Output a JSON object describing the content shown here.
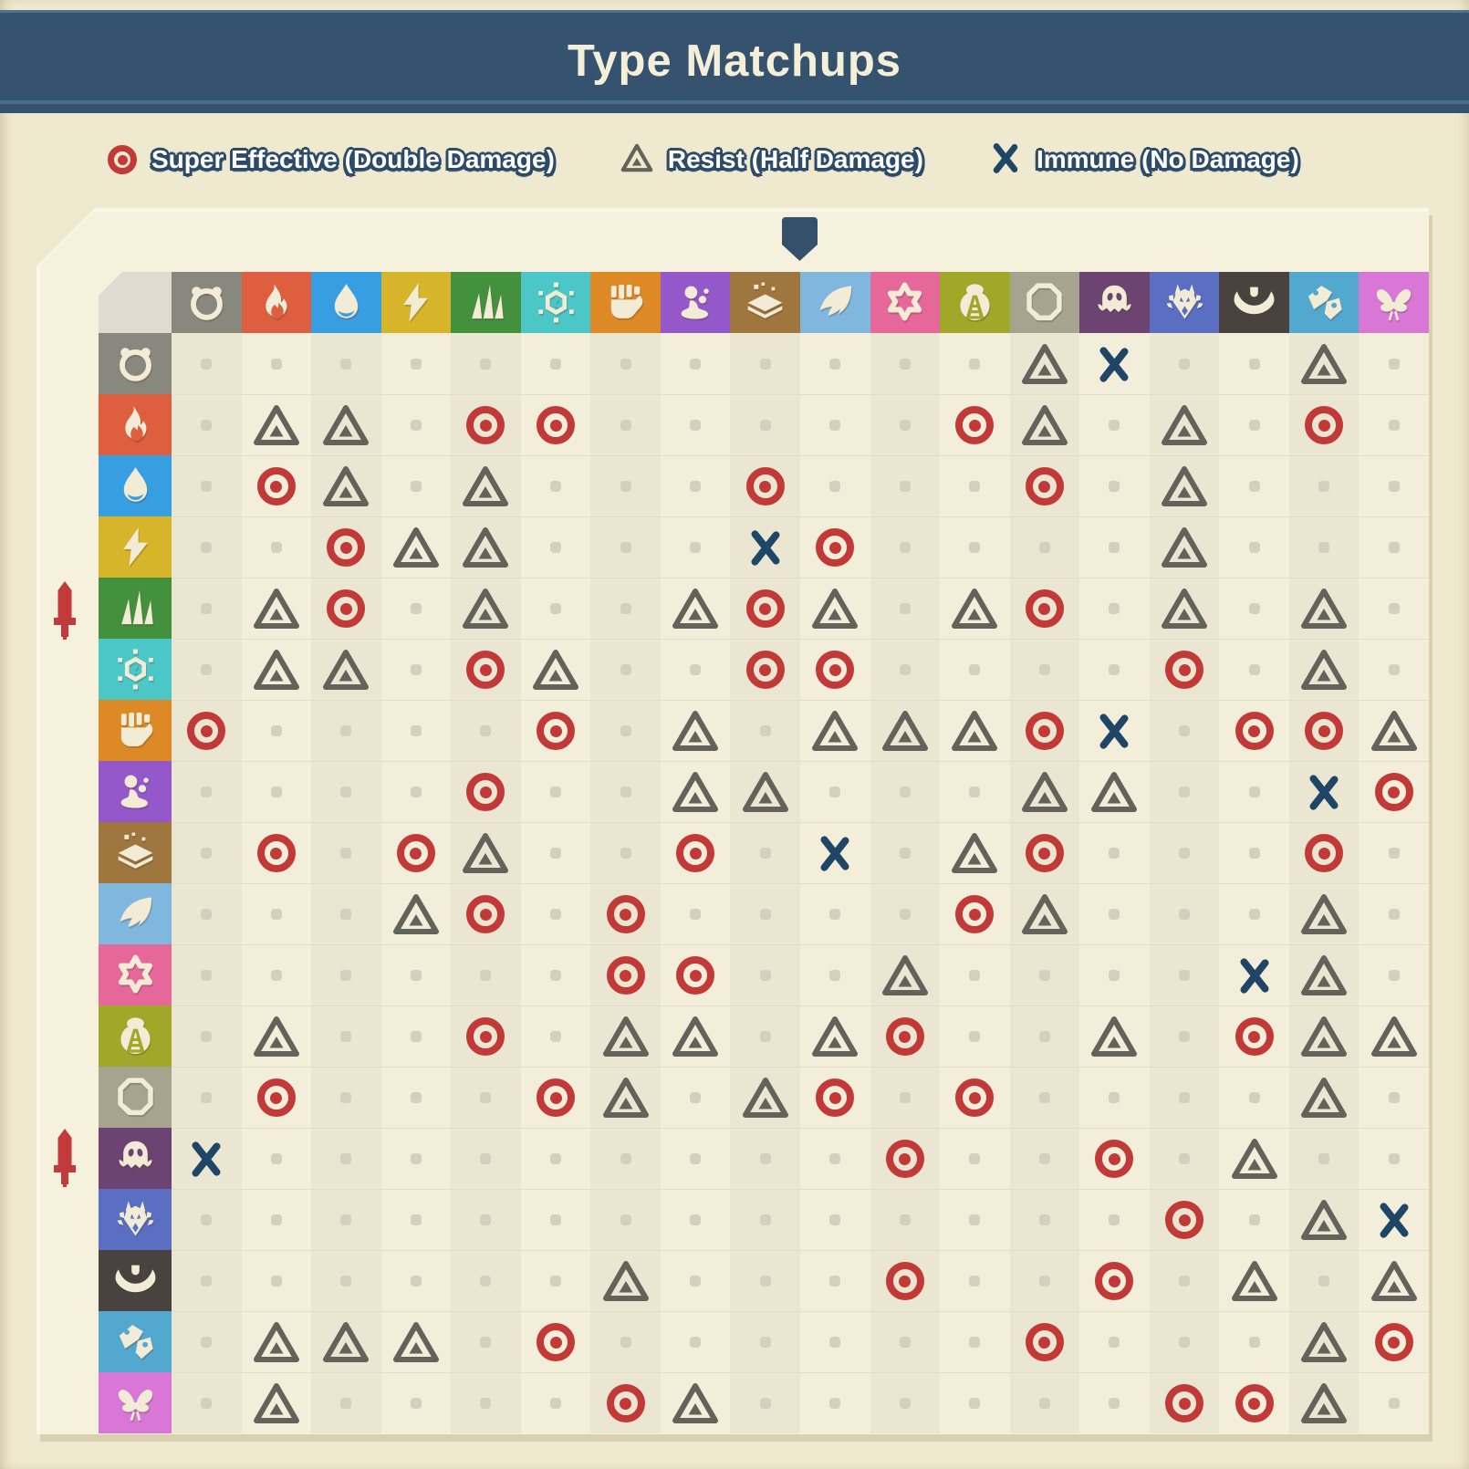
{
  "title": "Type Matchups",
  "legend": [
    {
      "key": "super",
      "label": "Super Effective (Double Damage)",
      "icon": "target-icon"
    },
    {
      "key": "resist",
      "label": "Resist (Half Damage)",
      "icon": "triangle-icon"
    },
    {
      "key": "immune",
      "label": "Immune (No Damage)",
      "icon": "cross-icon"
    }
  ],
  "colors": {
    "page_background": "#efe9cf",
    "title_bar": "#35536e",
    "title_text": "#f5efd9",
    "panel_background": "#f6f1dc",
    "corner_cell": "#dfdccf",
    "column_stripe_dark": "#eae6d2",
    "column_stripe_light": "#f3eeda",
    "neutral_dot": "#d3d0bf",
    "super_effective": "#c23a38",
    "resist": "#63635b",
    "immune": "#1f4666",
    "icon_foreground": "#f2ecd6",
    "attacker_marker": "#c23a3c",
    "defender_marker": "#35506b"
  },
  "markers": {
    "defender_marker_icon": "shield-icon",
    "attacker_marker_icon": "sword-icon",
    "attacker_marker_row_indices": [
      4,
      13
    ]
  },
  "types": [
    {
      "key": "normal",
      "color": "#89887f"
    },
    {
      "key": "fire",
      "color": "#dd5f40"
    },
    {
      "key": "water",
      "color": "#389ee2"
    },
    {
      "key": "electric",
      "color": "#d7b52b"
    },
    {
      "key": "grass",
      "color": "#43913c"
    },
    {
      "key": "ice",
      "color": "#4cc7c8"
    },
    {
      "key": "fighting",
      "color": "#dd8a26"
    },
    {
      "key": "poison",
      "color": "#9458cb"
    },
    {
      "key": "ground",
      "color": "#a0763f"
    },
    {
      "key": "flying",
      "color": "#80b7de"
    },
    {
      "key": "psychic",
      "color": "#e6679a"
    },
    {
      "key": "bug",
      "color": "#a1a829"
    },
    {
      "key": "rock",
      "color": "#a6a38e"
    },
    {
      "key": "ghost",
      "color": "#6d4471"
    },
    {
      "key": "dragon",
      "color": "#5a6ec2"
    },
    {
      "key": "dark",
      "color": "#4a423e"
    },
    {
      "key": "steel",
      "color": "#53a8cf"
    },
    {
      "key": "fairy",
      "color": "#d977d7"
    }
  ],
  "matchups": {
    "orientation": "rows are attacking type, columns are defending type",
    "codes": {
      "n": "neutral",
      "s": "super-effective",
      "r": "resist",
      "i": "immune"
    },
    "grid": [
      "nnnnnnnnnnnnrinnrn",
      "nrrnssnnnnnsrnrnsn",
      "nsrnrnnnsnnnsnrnnn",
      "nnsrrnnnisnnnnrnnn",
      "nrsnrnnrsrnrsnrnrn",
      "nrrnsrnnssnnnnsnrn",
      "snnnnsnrnrrrsinssr",
      "nnnnsnnrrnnnrrnnis",
      "nsnsrnnsninrsnnnsn",
      "nnnrsnsnnnnsrnnnrn",
      "nnnnnnssnnrnnnnirn",
      "nrnnsnrrnrsnnrnsrr",
      "nsnnnsrnrsnsnnnnrn",
      "innnnnnnnnsnnsnrnn",
      "nnnnnnnnnnnnnnsnri",
      "nnnnnnrnnnsnnsnrnr",
      "nrrrnsnnnnnnsnnnrs",
      "nrnnnnsrnnnnnnssrn"
    ]
  }
}
